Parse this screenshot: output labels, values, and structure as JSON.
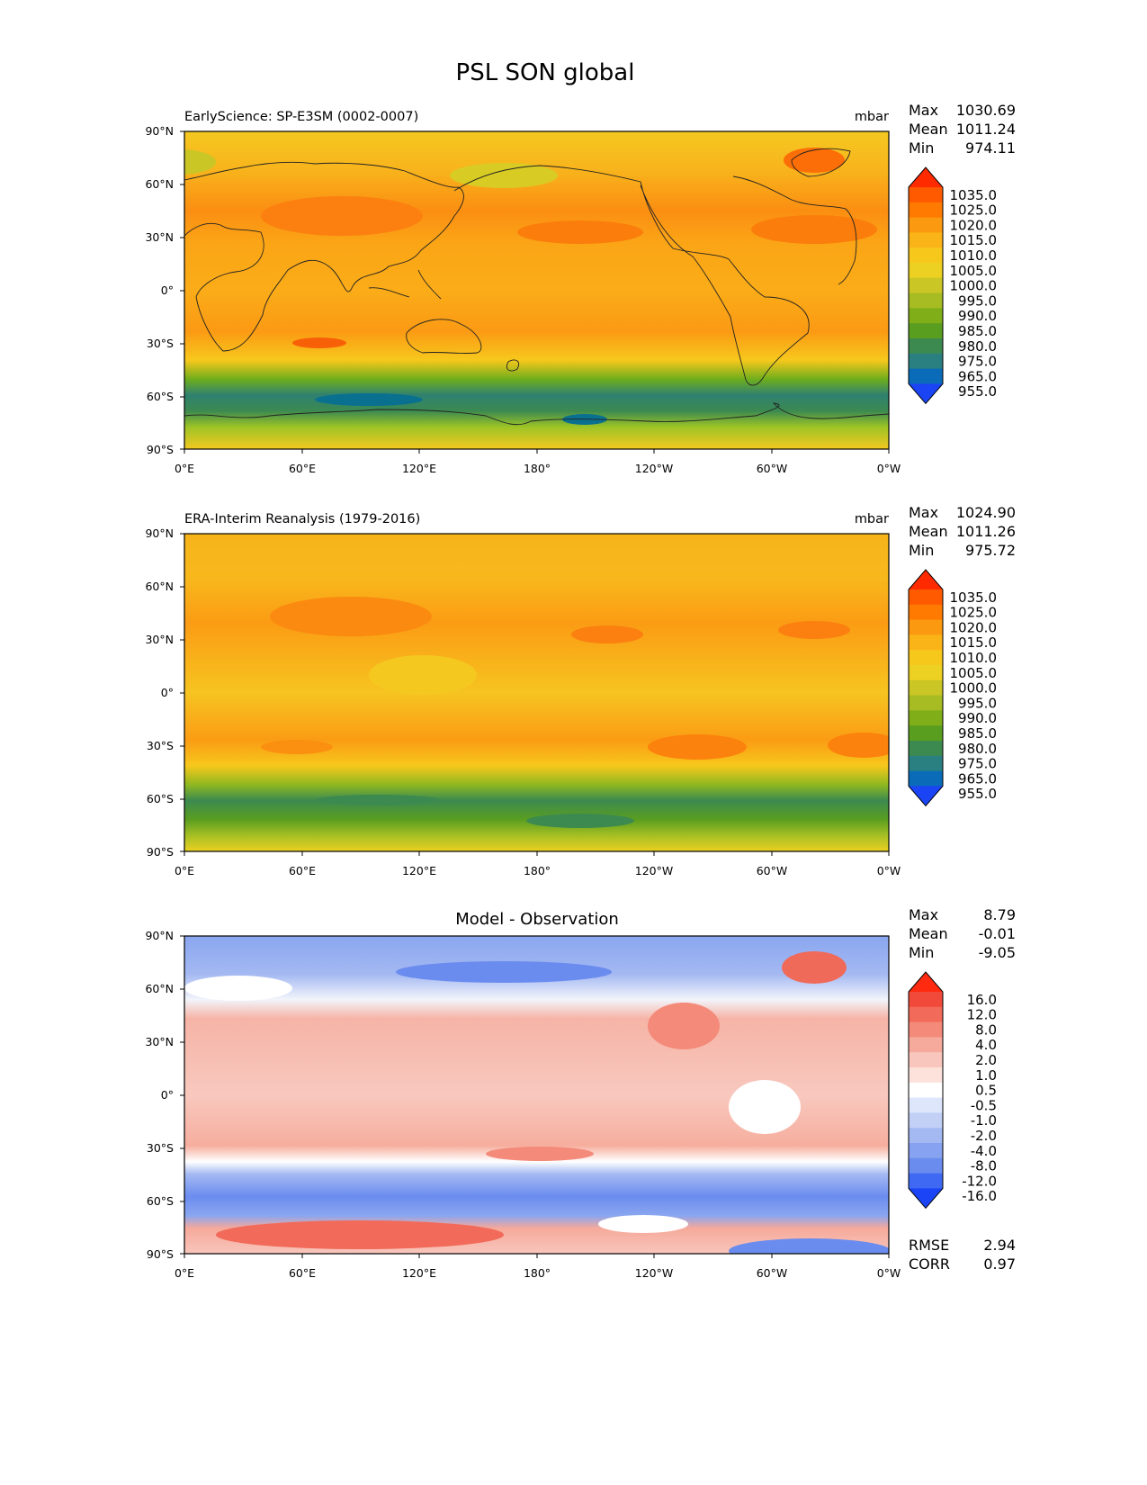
{
  "figure": {
    "title": "PSL SON global"
  },
  "axes": {
    "x_ticks": [
      "0°E",
      "60°E",
      "120°E",
      "180°",
      "120°W",
      "60°W",
      "0°W"
    ],
    "y_ticks": [
      "90°N",
      "60°N",
      "30°N",
      "0°",
      "30°S",
      "60°S",
      "90°S"
    ]
  },
  "stat_labels": {
    "max": "Max",
    "mean": "Mean",
    "min": "Min",
    "rmse": "RMSE",
    "corr": "CORR"
  },
  "chart_data": [
    {
      "type": "heatmap",
      "title": "EarlyScience: SP-E3SM (0002-0007)",
      "units": "mbar",
      "stats": {
        "max": "1030.69",
        "mean": "1011.24",
        "min": "974.11"
      },
      "colorbar": {
        "levels": [
          "1035.0",
          "1025.0",
          "1020.0",
          "1015.0",
          "1010.0",
          "1005.0",
          "1000.0",
          "995.0",
          "990.0",
          "985.0",
          "980.0",
          "975.0",
          "965.0",
          "955.0"
        ],
        "colors": [
          "#ff2a00",
          "#ff5a00",
          "#ff7a00",
          "#fb9a10",
          "#fbb418",
          "#f7c81c",
          "#ecd022",
          "#c9c626",
          "#a6bc22",
          "#7fae18",
          "#5a9e20",
          "#3c8a50",
          "#2a8080",
          "#0a6cb8",
          "#1a44f4"
        ]
      },
      "xlim": [
        0,
        360
      ],
      "ylim": [
        -90,
        90
      ]
    },
    {
      "type": "heatmap",
      "title": "ERA-Interim Reanalysis (1979-2016)",
      "units": "mbar",
      "stats": {
        "max": "1024.90",
        "mean": "1011.26",
        "min": "975.72"
      },
      "colorbar": {
        "levels": [
          "1035.0",
          "1025.0",
          "1020.0",
          "1015.0",
          "1010.0",
          "1005.0",
          "1000.0",
          "995.0",
          "990.0",
          "985.0",
          "980.0",
          "975.0",
          "965.0",
          "955.0"
        ],
        "colors": [
          "#ff2a00",
          "#ff5a00",
          "#ff7a00",
          "#fb9a10",
          "#fbb418",
          "#f7c81c",
          "#ecd022",
          "#c9c626",
          "#a6bc22",
          "#7fae18",
          "#5a9e20",
          "#3c8a50",
          "#2a8080",
          "#0a6cb8",
          "#1a44f4"
        ]
      },
      "xlim": [
        0,
        360
      ],
      "ylim": [
        -90,
        90
      ]
    },
    {
      "type": "heatmap",
      "title": "Model - Observation",
      "units": "",
      "stats": {
        "max": "8.79",
        "mean": "-0.01",
        "min": "-9.05"
      },
      "metrics": {
        "rmse": "2.94",
        "corr": "0.97"
      },
      "colorbar": {
        "levels": [
          "16.0",
          "12.0",
          "8.0",
          "4.0",
          "2.0",
          "1.0",
          "0.5",
          "-0.5",
          "-1.0",
          "-2.0",
          "-4.0",
          "-8.0",
          "-12.0",
          "-16.0"
        ],
        "colors": [
          "#ff2a10",
          "#f24a3a",
          "#f26a5a",
          "#f48a7a",
          "#f6aa9c",
          "#f8c6bc",
          "#fde2dc",
          "#ffffff",
          "#dde6fb",
          "#c2d0f6",
          "#a4b9f2",
          "#86a2f0",
          "#6b8cef",
          "#3f68f3",
          "#1a44f6"
        ]
      },
      "xlim": [
        0,
        360
      ],
      "ylim": [
        -90,
        90
      ]
    }
  ]
}
